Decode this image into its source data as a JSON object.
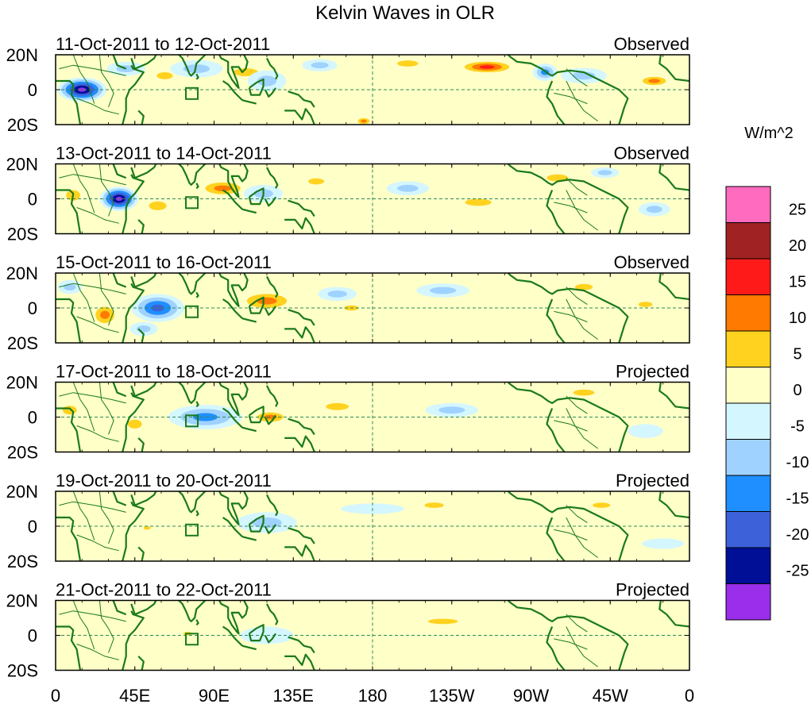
{
  "chart_data": {
    "type": "heatmap",
    "title": "Kelvin Waves in OLR",
    "units": "W/m^2",
    "x_tick_labels": [
      "0",
      "45E",
      "90E",
      "135E",
      "180",
      "135W",
      "90W",
      "45W",
      "0"
    ],
    "y_tick_labels": [
      "20N",
      "0",
      "20S"
    ],
    "colorbar": {
      "levels": [
        "25",
        "20",
        "15",
        "10",
        "5",
        "0",
        "-5",
        "-10",
        "-15",
        "-20",
        "-25"
      ],
      "colors": [
        "#ff6bbf",
        "#a02222",
        "#ff1a1a",
        "#ff7a00",
        "#ffd21f",
        "#ffffc8",
        "#d4f6ff",
        "#a0d2ff",
        "#1f8fff",
        "#3c61d9",
        "#000f96",
        "#9a2eea"
      ]
    },
    "panels": [
      {
        "dates": "11-Oct-2011 to 12-Oct-2011",
        "status": "Observed",
        "blobs": [
          {
            "lon": 15,
            "lat": 0,
            "w": 28,
            "h": 14,
            "v": -28
          },
          {
            "lon": 40,
            "lat": 12,
            "w": 22,
            "h": 8,
            "v": -8
          },
          {
            "lon": 62,
            "lat": 8,
            "w": 18,
            "h": 8,
            "v": 8
          },
          {
            "lon": 80,
            "lat": 12,
            "w": 30,
            "h": 10,
            "v": -7
          },
          {
            "lon": 108,
            "lat": 10,
            "w": 28,
            "h": 9,
            "v": 8
          },
          {
            "lon": 120,
            "lat": 5,
            "w": 22,
            "h": 12,
            "v": -9
          },
          {
            "lon": 150,
            "lat": 14,
            "w": 20,
            "h": 7,
            "v": -6
          },
          {
            "lon": 175,
            "lat": -18,
            "w": 10,
            "h": 5,
            "v": 12
          },
          {
            "lon": 200,
            "lat": 15,
            "w": 24,
            "h": 7,
            "v": 9
          },
          {
            "lon": 245,
            "lat": 13,
            "w": 34,
            "h": 8,
            "v": 16
          },
          {
            "lon": 278,
            "lat": 10,
            "w": 14,
            "h": 10,
            "v": -14
          },
          {
            "lon": 300,
            "lat": 8,
            "w": 26,
            "h": 9,
            "v": -7
          },
          {
            "lon": 340,
            "lat": 5,
            "w": 20,
            "h": 7,
            "v": 12
          }
        ]
      },
      {
        "dates": "13-Oct-2011 to 14-Oct-2011",
        "status": "Observed",
        "blobs": [
          {
            "lon": 10,
            "lat": 2,
            "w": 16,
            "h": 12,
            "v": 10
          },
          {
            "lon": 36,
            "lat": 0,
            "w": 22,
            "h": 14,
            "v": -26
          },
          {
            "lon": 58,
            "lat": -4,
            "w": 20,
            "h": 10,
            "v": 8
          },
          {
            "lon": 95,
            "lat": 6,
            "w": 30,
            "h": 10,
            "v": 14
          },
          {
            "lon": 118,
            "lat": 3,
            "w": 22,
            "h": 10,
            "v": -10
          },
          {
            "lon": 148,
            "lat": 10,
            "w": 18,
            "h": 7,
            "v": 8
          },
          {
            "lon": 200,
            "lat": 6,
            "w": 24,
            "h": 8,
            "v": -8
          },
          {
            "lon": 240,
            "lat": -2,
            "w": 30,
            "h": 8,
            "v": 7
          },
          {
            "lon": 285,
            "lat": 12,
            "w": 24,
            "h": 8,
            "v": 10
          },
          {
            "lon": 312,
            "lat": 15,
            "w": 16,
            "h": 6,
            "v": -10
          },
          {
            "lon": 340,
            "lat": -6,
            "w": 18,
            "h": 8,
            "v": -6
          }
        ]
      },
      {
        "dates": "15-Oct-2011 to 16-Oct-2011",
        "status": "Observed",
        "blobs": [
          {
            "lon": 8,
            "lat": 12,
            "w": 14,
            "h": 8,
            "v": -9
          },
          {
            "lon": 28,
            "lat": -4,
            "w": 16,
            "h": 14,
            "v": 14
          },
          {
            "lon": 58,
            "lat": 0,
            "w": 30,
            "h": 16,
            "v": -18
          },
          {
            "lon": 50,
            "lat": -12,
            "w": 16,
            "h": 8,
            "v": -10
          },
          {
            "lon": 120,
            "lat": 4,
            "w": 34,
            "h": 12,
            "v": 15
          },
          {
            "lon": 160,
            "lat": 8,
            "w": 22,
            "h": 8,
            "v": -7
          },
          {
            "lon": 168,
            "lat": 0,
            "w": 16,
            "h": 6,
            "v": 10
          },
          {
            "lon": 220,
            "lat": 10,
            "w": 30,
            "h": 8,
            "v": -6
          },
          {
            "lon": 300,
            "lat": 12,
            "w": 20,
            "h": 7,
            "v": 8
          },
          {
            "lon": 335,
            "lat": 2,
            "w": 16,
            "h": 6,
            "v": 8
          }
        ]
      },
      {
        "dates": "17-Oct-2011 to 18-Oct-2011",
        "status": "Projected",
        "blobs": [
          {
            "lon": 8,
            "lat": 4,
            "w": 16,
            "h": 10,
            "v": 6
          },
          {
            "lon": 45,
            "lat": -4,
            "w": 16,
            "h": 10,
            "v": 8
          },
          {
            "lon": 85,
            "lat": 0,
            "w": 42,
            "h": 14,
            "v": -12
          },
          {
            "lon": 122,
            "lat": 0,
            "w": 22,
            "h": 8,
            "v": 13
          },
          {
            "lon": 160,
            "lat": 6,
            "w": 26,
            "h": 8,
            "v": 6
          },
          {
            "lon": 225,
            "lat": 4,
            "w": 30,
            "h": 8,
            "v": -6
          },
          {
            "lon": 300,
            "lat": 14,
            "w": 24,
            "h": 7,
            "v": 7
          },
          {
            "lon": 335,
            "lat": -8,
            "w": 20,
            "h": 8,
            "v": -5
          }
        ]
      },
      {
        "dates": "19-Oct-2011 to 20-Oct-2011",
        "status": "Projected",
        "blobs": [
          {
            "lon": 120,
            "lat": 2,
            "w": 34,
            "h": 12,
            "v": -8
          },
          {
            "lon": 52,
            "lat": -1,
            "w": 8,
            "h": 4,
            "v": 7
          },
          {
            "lon": 180,
            "lat": 10,
            "w": 36,
            "h": 6,
            "v": -4
          },
          {
            "lon": 215,
            "lat": 12,
            "w": 22,
            "h": 6,
            "v": 6
          },
          {
            "lon": 255,
            "lat": 7,
            "w": 30,
            "h": 6,
            "v": 5
          },
          {
            "lon": 310,
            "lat": 12,
            "w": 20,
            "h": 6,
            "v": 6
          },
          {
            "lon": 345,
            "lat": -10,
            "w": 24,
            "h": 6,
            "v": -4
          }
        ]
      },
      {
        "dates": "21-Oct-2011 to 22-Oct-2011",
        "status": "Projected",
        "blobs": [
          {
            "lon": 120,
            "lat": 0,
            "w": 30,
            "h": 10,
            "v": -4
          },
          {
            "lon": 75,
            "lat": 1,
            "w": 10,
            "h": 4,
            "v": 7
          },
          {
            "lon": 220,
            "lat": 8,
            "w": 34,
            "h": 6,
            "v": 6
          },
          {
            "lon": 275,
            "lat": -2,
            "w": 34,
            "h": 6,
            "v": 4
          },
          {
            "lon": 300,
            "lat": 12,
            "w": 22,
            "h": 6,
            "v": 5
          },
          {
            "lon": 170,
            "lat": -8,
            "w": 40,
            "h": 6,
            "v": 4
          }
        ]
      }
    ]
  }
}
